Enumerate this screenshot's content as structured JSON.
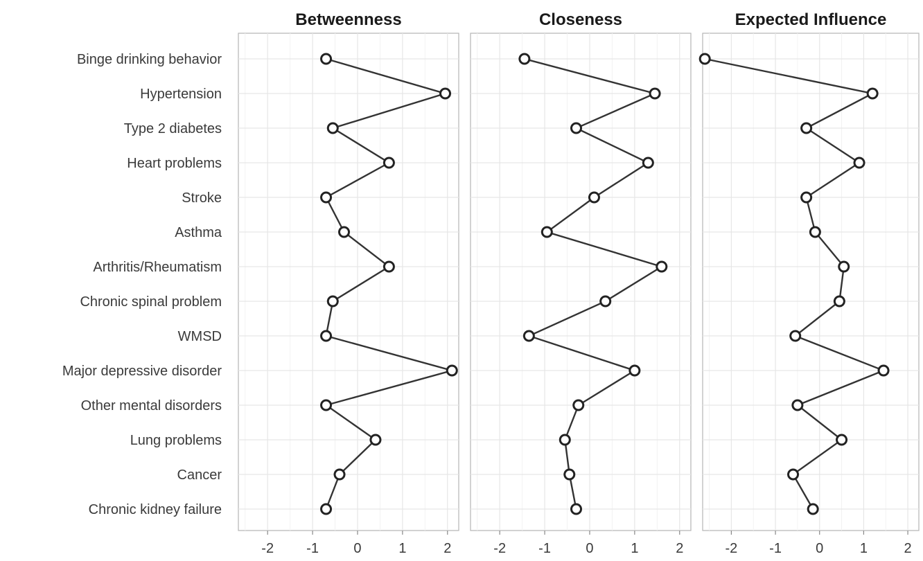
{
  "chart_data": {
    "type": "line",
    "facets": [
      "Betweenness",
      "Closeness",
      "Expected Influence"
    ],
    "categories": [
      "Binge drinking behavior",
      "Hypertension",
      "Type 2 diabetes",
      "Heart problems",
      "Stroke",
      "Asthma",
      "Arthritis/Rheumatism",
      "Chronic spinal problem",
      "WMSD",
      "Major depressive disorder",
      "Other mental disorders",
      "Lung problems",
      "Cancer",
      "Chronic kidney failure"
    ],
    "series": [
      {
        "name": "Betweenness",
        "values": [
          -0.7,
          1.95,
          -0.55,
          0.7,
          -0.7,
          -0.3,
          0.7,
          -0.55,
          -0.7,
          2.1,
          -0.7,
          0.4,
          -0.4,
          -0.7
        ]
      },
      {
        "name": "Closeness",
        "values": [
          -1.45,
          1.45,
          -0.3,
          1.3,
          0.1,
          -0.95,
          1.6,
          0.35,
          -1.35,
          1.0,
          -0.25,
          -0.55,
          -0.45,
          -0.3
        ]
      },
      {
        "name": "Expected Influence",
        "values": [
          -2.6,
          1.2,
          -0.3,
          0.9,
          -0.3,
          -0.1,
          0.55,
          0.45,
          -0.55,
          1.45,
          -0.5,
          0.5,
          -0.6,
          -0.15
        ]
      }
    ],
    "x_ticks": [
      "-2",
      "-1",
      "0",
      "1",
      "2"
    ],
    "xlim": [
      -2.65,
      2.25
    ],
    "xlabel": "",
    "ylabel": "",
    "grid": true,
    "colors": {
      "line": "#333333",
      "point_fill": "#ffffff",
      "point_stroke": "#222222",
      "grid": "#e6e6e6",
      "border": "#b5b5b5"
    }
  }
}
